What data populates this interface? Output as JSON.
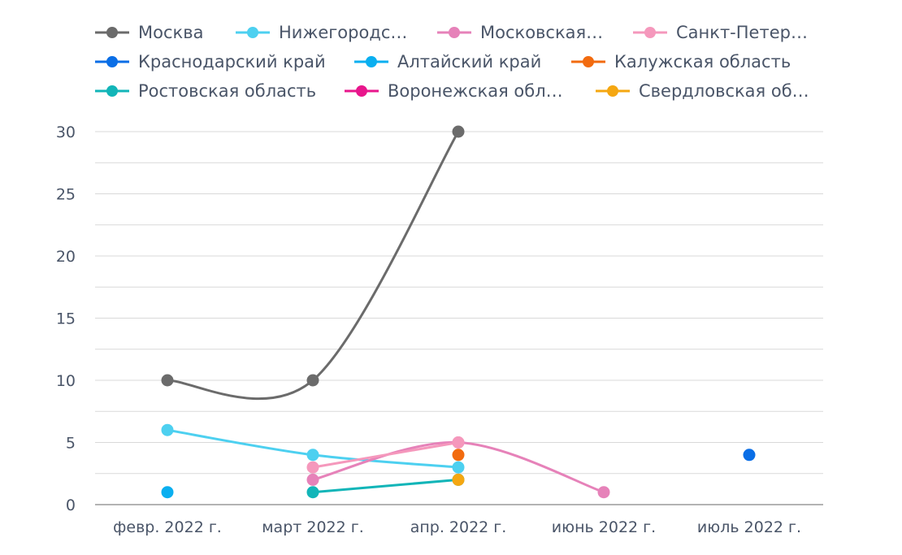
{
  "chart_data": {
    "type": "line",
    "title": "",
    "xlabel": "",
    "ylabel": "",
    "categories": [
      "февр. 2022 г.",
      "март 2022 г.",
      "апр. 2022 г.",
      "июнь 2022 г.",
      "июль 2022 г."
    ],
    "ylim": [
      0,
      30
    ],
    "yticks": [
      0,
      5,
      10,
      15,
      20,
      25,
      30
    ],
    "grid": true,
    "legend_position": "top",
    "series": [
      {
        "name": "Москва",
        "color": "#6b6b6b",
        "values": [
          10,
          10,
          30,
          null,
          null
        ]
      },
      {
        "name": "Нижегородс…",
        "color": "#4dd0f0",
        "values": [
          6,
          4,
          3,
          null,
          null
        ]
      },
      {
        "name": "Московская…",
        "color": "#e682b9",
        "values": [
          null,
          2,
          5,
          1,
          null
        ]
      },
      {
        "name": "Санкт-Петер…",
        "color": "#f598bc",
        "values": [
          null,
          3,
          5,
          null,
          null
        ]
      },
      {
        "name": "Краснодарский край",
        "color": "#0a6ee6",
        "values": [
          null,
          null,
          null,
          null,
          4
        ]
      },
      {
        "name": "Алтайский край",
        "color": "#0aaff0",
        "values": [
          1,
          null,
          null,
          null,
          null
        ]
      },
      {
        "name": "Калужская область",
        "color": "#f26b0f",
        "values": [
          null,
          null,
          4,
          null,
          null
        ]
      },
      {
        "name": "Ростовская область",
        "color": "#12b5b8",
        "values": [
          null,
          1,
          2,
          null,
          null
        ]
      },
      {
        "name": "Воронежская обл…",
        "color": "#e8168c",
        "values": [
          null,
          null,
          null,
          null,
          null
        ]
      },
      {
        "name": "Свердловская об…",
        "color": "#f5a711",
        "values": [
          null,
          null,
          2,
          null,
          null
        ]
      }
    ]
  }
}
